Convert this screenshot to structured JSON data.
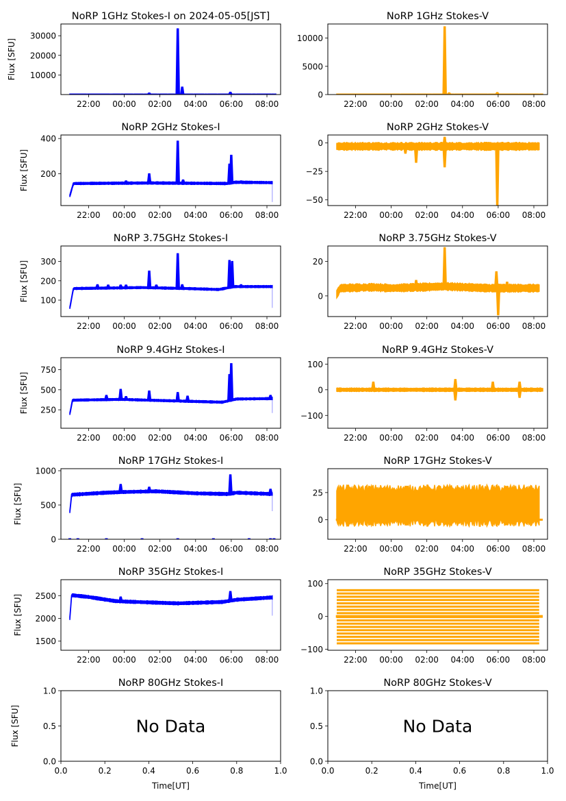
{
  "chart_data": {
    "type": "scatter",
    "layout": "7 rows x 2 columns grid of subplots",
    "figure_title_note": "Title of first subplot includes date",
    "x_axis": {
      "type": "time",
      "range": [
        "20:27",
        "08:46"
      ],
      "tick_labels": [
        "22:00",
        "00:00",
        "02:00",
        "04:00",
        "06:00",
        "08:00"
      ],
      "data_span": [
        "20:57",
        "08:30"
      ]
    },
    "ylabel_left": "Flux [SFU]",
    "xlabel_bottom": "Time[UT]",
    "no_data_text": "No Data",
    "colors": {
      "stokes_i": "#0000ff",
      "stokes_v": "#ffa500"
    },
    "panels": [
      {
        "title": "NoRP 1GHz Stokes-I on 2024-05-05[JST]",
        "series": "Stokes-I",
        "ylabel": "Flux [SFU]",
        "ylim": [
          0,
          36000
        ],
        "yticks": [
          10000,
          20000,
          30000
        ],
        "baseline": [
          [
            20.95,
            100
          ],
          [
            8.5,
            100
          ]
        ],
        "spread": 150,
        "events": [
          [
            1.4,
            800
          ],
          [
            3.0,
            33500
          ],
          [
            3.25,
            3800
          ],
          [
            5.95,
            1200
          ]
        ],
        "start_dip": null
      },
      {
        "title": "NoRP 1GHz Stokes-V",
        "series": "Stokes-V",
        "ylabel": "",
        "ylim": [
          0,
          12500
        ],
        "yticks": [
          0,
          5000,
          10000
        ],
        "baseline": [
          [
            20.95,
            30
          ],
          [
            8.5,
            30
          ]
        ],
        "spread": 60,
        "events": [
          [
            3.0,
            12000
          ],
          [
            3.25,
            300
          ],
          [
            5.95,
            350
          ]
        ]
      },
      {
        "title": "NoRP 2GHz Stokes-I",
        "series": "Stokes-I",
        "ylabel": "Flux [SFU]",
        "ylim": [
          20,
          420
        ],
        "yticks": [
          200,
          400
        ],
        "baseline": [
          [
            20.95,
            75
          ],
          [
            21.15,
            145
          ],
          [
            1.5,
            148
          ],
          [
            5.8,
            145
          ],
          [
            6.2,
            152
          ],
          [
            8.3,
            150
          ]
        ],
        "spread": 6,
        "events": [
          [
            0.1,
            160
          ],
          [
            1.4,
            200
          ],
          [
            3.0,
            385
          ],
          [
            3.3,
            165
          ],
          [
            5.9,
            255
          ],
          [
            6.0,
            305
          ],
          [
            6.55,
            160
          ]
        ],
        "end_drop": 40
      },
      {
        "title": "NoRP 2GHz Stokes-V",
        "series": "Stokes-V",
        "ylabel": "",
        "ylim": [
          -55,
          7
        ],
        "yticks": [
          -50,
          -25,
          0
        ],
        "baseline": [
          [
            20.95,
            -3
          ],
          [
            8.3,
            -3
          ]
        ],
        "spread": 3,
        "events": [
          [
            1.4,
            -17
          ],
          [
            3.0,
            -21
          ],
          [
            3.0,
            5
          ],
          [
            5.95,
            -55
          ],
          [
            0.8,
            -9
          ]
        ]
      },
      {
        "title": "NoRP 3.75GHz Stokes-I",
        "series": "Stokes-I",
        "ylabel": "Flux [SFU]",
        "ylim": [
          15,
          380
        ],
        "yticks": [
          100,
          200,
          300
        ],
        "baseline": [
          [
            20.95,
            60
          ],
          [
            21.15,
            160
          ],
          [
            1.0,
            165
          ],
          [
            3.5,
            160
          ],
          [
            5.3,
            155
          ],
          [
            6.2,
            170
          ],
          [
            8.3,
            170
          ]
        ],
        "spread": 5,
        "events": [
          [
            22.5,
            180
          ],
          [
            23.1,
            178
          ],
          [
            23.8,
            178
          ],
          [
            0.1,
            178
          ],
          [
            1.4,
            250
          ],
          [
            1.8,
            178
          ],
          [
            3.0,
            340
          ],
          [
            3.25,
            180
          ],
          [
            5.9,
            305
          ],
          [
            6.05,
            300
          ],
          [
            6.55,
            180
          ]
        ],
        "end_drop": 60
      },
      {
        "title": "NoRP 3.75GHz Stokes-V",
        "series": "Stokes-V",
        "ylabel": "",
        "ylim": [
          -12,
          29
        ],
        "yticks": [
          0,
          20
        ],
        "baseline": [
          [
            20.95,
            1
          ],
          [
            21.15,
            4.5
          ],
          [
            23.0,
            5
          ],
          [
            0.0,
            4.5
          ],
          [
            3.0,
            5.5
          ],
          [
            5.5,
            4.5
          ],
          [
            8.3,
            4.5
          ]
        ],
        "spread": 2,
        "events": [
          [
            1.4,
            9
          ],
          [
            3.0,
            28
          ],
          [
            5.9,
            14
          ],
          [
            6.0,
            -11
          ],
          [
            6.5,
            8
          ]
        ]
      },
      {
        "title": "NoRP 9.4GHz Stokes-I",
        "series": "Stokes-I",
        "ylabel": "Flux [SFU]",
        "ylim": [
          20,
          900
        ],
        "yticks": [
          250,
          500,
          750
        ],
        "baseline": [
          [
            20.95,
            200
          ],
          [
            21.1,
            370
          ],
          [
            23.8,
            380
          ],
          [
            3.0,
            360
          ],
          [
            5.5,
            345
          ],
          [
            6.3,
            385
          ],
          [
            8.3,
            390
          ]
        ],
        "spread": 12,
        "events": [
          [
            23.0,
            430
          ],
          [
            23.8,
            505
          ],
          [
            0.1,
            415
          ],
          [
            1.4,
            485
          ],
          [
            3.0,
            465
          ],
          [
            3.55,
            420
          ],
          [
            5.9,
            690
          ],
          [
            6.0,
            825
          ],
          [
            8.2,
            430
          ]
        ],
        "end_drop": 210
      },
      {
        "title": "NoRP 9.4GHz Stokes-V",
        "series": "Stokes-V",
        "ylabel": "",
        "ylim": [
          -150,
          125
        ],
        "yticks": [
          -100,
          0,
          100
        ],
        "baseline": [
          [
            20.95,
            0
          ],
          [
            8.5,
            0
          ]
        ],
        "spread": 6,
        "events": [
          [
            3.6,
            40
          ],
          [
            3.6,
            -40
          ],
          [
            5.7,
            30
          ],
          [
            7.2,
            30
          ],
          [
            7.2,
            -30
          ],
          [
            23.0,
            30
          ]
        ]
      },
      {
        "title": "NoRP 17GHz Stokes-I",
        "series": "Stokes-I",
        "ylabel": "Flux [SFU]",
        "ylim": [
          0,
          1030
        ],
        "yticks": [
          0,
          500,
          1000
        ],
        "baseline": [
          [
            20.95,
            400
          ],
          [
            21.05,
            650
          ],
          [
            23.0,
            680
          ],
          [
            0.0,
            690
          ],
          [
            1.8,
            700
          ],
          [
            4.0,
            670
          ],
          [
            5.8,
            660
          ],
          [
            6.3,
            680
          ],
          [
            8.3,
            660
          ]
        ],
        "spread": 20,
        "events": [
          [
            23.8,
            800
          ],
          [
            1.4,
            760
          ],
          [
            5.95,
            940
          ],
          [
            8.2,
            730
          ]
        ],
        "end_drop": 410,
        "zero_marks": true
      },
      {
        "title": "NoRP 17GHz Stokes-V",
        "series": "Stokes-V",
        "ylabel": "",
        "ylim": [
          -18,
          47
        ],
        "yticks": [
          0,
          25
        ],
        "baseline": [
          [
            20.95,
            13
          ],
          [
            8.3,
            13
          ]
        ],
        "spread": 16,
        "events": [],
        "zero_line": true
      },
      {
        "title": "NoRP 35GHz Stokes-I",
        "series": "Stokes-I",
        "ylabel": "Flux [SFU]",
        "ylim": [
          1300,
          2850
        ],
        "yticks": [
          1500,
          2000,
          2500
        ],
        "baseline": [
          [
            20.95,
            2000
          ],
          [
            21.05,
            2510
          ],
          [
            22.0,
            2470
          ],
          [
            23.5,
            2380
          ],
          [
            0.0,
            2370
          ],
          [
            1.5,
            2350
          ],
          [
            3.0,
            2330
          ],
          [
            5.5,
            2360
          ],
          [
            6.3,
            2410
          ],
          [
            8.3,
            2460
          ]
        ],
        "spread": 30,
        "events": [
          [
            23.8,
            2470
          ],
          [
            5.95,
            2590
          ]
        ],
        "end_drop": 2060
      },
      {
        "title": "NoRP 35GHz Stokes-V",
        "series": "Stokes-V",
        "ylabel": "",
        "ylim": [
          -103,
          112
        ],
        "yticks": [
          -100,
          0,
          100
        ],
        "baseline": [
          [
            20.95,
            0
          ],
          [
            8.3,
            0
          ]
        ],
        "spread": 0,
        "events": [],
        "levels": [
          -82,
          -72,
          -62,
          -52,
          -42,
          -32,
          -22,
          -12,
          -2,
          0,
          10,
          20,
          30,
          40,
          50,
          60,
          70,
          80
        ]
      },
      {
        "title": "NoRP 80GHz Stokes-I",
        "series": "Stokes-I",
        "ylabel": "Flux [SFU]",
        "no_data": true,
        "xlim": [
          0.0,
          1.0
        ],
        "ylim": [
          0.0,
          1.0
        ],
        "xticks": [
          "0.0",
          "0.2",
          "0.4",
          "0.6",
          "0.8",
          "1.0"
        ],
        "yticks": [
          "0.0",
          "0.5",
          "1.0"
        ],
        "xlabel": "Time[UT]"
      },
      {
        "title": "NoRP 80GHz Stokes-V",
        "series": "Stokes-V",
        "ylabel": "",
        "no_data": true,
        "xlim": [
          0.0,
          1.0
        ],
        "ylim": [
          0.0,
          1.0
        ],
        "xticks": [
          "0.0",
          "0.2",
          "0.4",
          "0.6",
          "0.8",
          "1.0"
        ],
        "yticks": [
          "0.0",
          "0.5",
          "1.0"
        ],
        "xlabel": "Time[UT]"
      }
    ]
  }
}
